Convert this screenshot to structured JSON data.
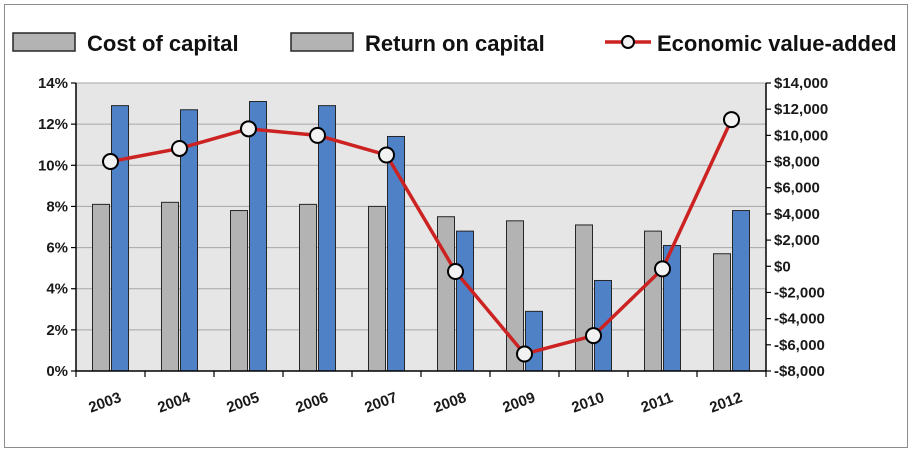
{
  "chart_data": {
    "type": "bar",
    "title": "",
    "xlabel": "",
    "ylabel": "",
    "categories": [
      "2003",
      "2004",
      "2005",
      "2006",
      "2007",
      "2008",
      "2009",
      "2010",
      "2011",
      "2012"
    ],
    "series": [
      {
        "name": "Cost of capital",
        "type": "bar",
        "axis": "left",
        "color": "#b3b3b3",
        "values": [
          8.1,
          8.2,
          7.8,
          8.1,
          8.0,
          7.5,
          7.3,
          7.1,
          6.8,
          5.7
        ]
      },
      {
        "name": "Return on capital",
        "type": "bar",
        "axis": "left",
        "color": "#4f81c7",
        "values": [
          12.9,
          12.7,
          13.1,
          12.9,
          11.4,
          6.8,
          2.9,
          4.4,
          6.1,
          7.8
        ]
      },
      {
        "name": "Economic value-added",
        "type": "line",
        "axis": "right",
        "color": "#cc2222",
        "marker": "circle",
        "values": [
          8000,
          9000,
          10500,
          10000,
          8500,
          -400,
          -6700,
          -5300,
          -200,
          11200
        ]
      }
    ],
    "y_left": {
      "ylim": [
        0,
        14
      ],
      "ticks": [
        0,
        2,
        4,
        6,
        8,
        10,
        12,
        14
      ],
      "tick_labels": [
        "0%",
        "2%",
        "4%",
        "6%",
        "8%",
        "10%",
        "12%",
        "14%"
      ]
    },
    "y_right": {
      "ylim": [
        -8000,
        14000
      ],
      "ticks": [
        -8000,
        -6000,
        -4000,
        -2000,
        0,
        2000,
        4000,
        6000,
        8000,
        10000,
        12000,
        14000
      ],
      "tick_labels": [
        "-$8,000",
        "-$6,000",
        "-$4,000",
        "-$2,000",
        "$0",
        "$2,000",
        "$4,000",
        "$6,000",
        "$8,000",
        "$10,000",
        "$12,000",
        "$14,000"
      ]
    },
    "grid": true,
    "legend_position": "top"
  }
}
